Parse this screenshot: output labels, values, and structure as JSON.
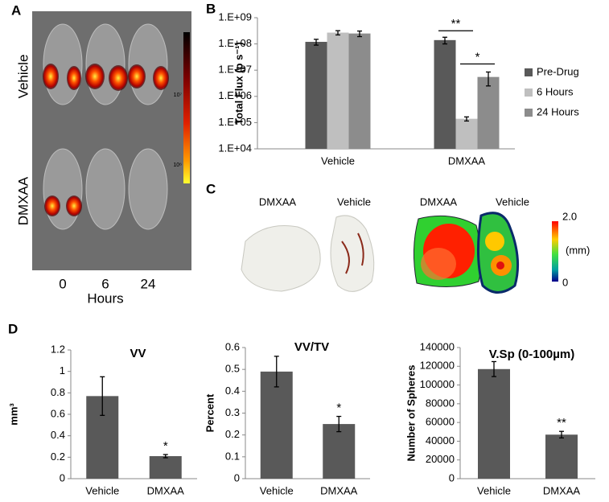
{
  "panels": {
    "a": "A",
    "b": "B",
    "c": "C",
    "d": "D"
  },
  "panel_a": {
    "rows": [
      "Vehicle",
      "DMXAA"
    ],
    "columns": [
      "0",
      "6",
      "24"
    ],
    "x_label": "Hours",
    "colorbar_labels": [
      "10⁷",
      "10⁶"
    ]
  },
  "panel_c": {
    "labels": [
      "DMXAA",
      "Vehicle",
      "DMXAA",
      "Vehicle"
    ],
    "colorbar": {
      "max": "2.0",
      "unit": "(mm)",
      "min": "0"
    }
  },
  "chart_data": [
    {
      "type": "bar",
      "y_label": "Total Flux (p s⁻¹)",
      "log_scale": true,
      "categories": [
        "Vehicle",
        "DMXAA"
      ],
      "series": [
        {
          "name": "Pre-Drug",
          "color": "#595959",
          "values": [
            120000000,
            140000000
          ],
          "errors": [
            30000000,
            40000000
          ]
        },
        {
          "name": "6 Hours",
          "color": "#bfbfbf",
          "values": [
            270000000,
            140000
          ],
          "errors": [
            50000000,
            25000
          ]
        },
        {
          "name": "24 Hours",
          "color": "#8c8c8c",
          "values": [
            250000000,
            5500000
          ],
          "errors": [
            60000000,
            3000000
          ]
        }
      ],
      "ylim": [
        10000,
        1000000000
      ],
      "yticks": [
        {
          "value": 10000,
          "label": "1.E+04"
        },
        {
          "value": 100000,
          "label": "1.E+05"
        },
        {
          "value": 1000000,
          "label": "1.E+06"
        },
        {
          "value": 10000000,
          "label": "1.E+07"
        },
        {
          "value": 100000000,
          "label": "1.E+08"
        },
        {
          "value": 1000000000,
          "label": "1.E+09"
        }
      ],
      "annotations": [
        "**",
        "*"
      ],
      "legend": "right",
      "grid": false
    },
    {
      "type": "bar",
      "title": "VV",
      "y_label": "mm³",
      "categories": [
        "Vehicle",
        "DMXAA"
      ],
      "values": [
        0.77,
        0.21
      ],
      "errors": [
        0.18,
        0.015
      ],
      "color": "#595959",
      "ylim": [
        0,
        1.2
      ],
      "yticks": [
        0,
        0.2,
        0.4,
        0.6,
        0.8,
        1,
        1.2
      ],
      "annotations": [
        "*"
      ],
      "grid": false
    },
    {
      "type": "bar",
      "title": "VV/TV",
      "y_label": "Percent",
      "categories": [
        "Vehicle",
        "DMXAA"
      ],
      "values": [
        0.49,
        0.25
      ],
      "errors": [
        0.07,
        0.035
      ],
      "color": "#595959",
      "ylim": [
        0,
        0.6
      ],
      "yticks": [
        0,
        0.1,
        0.2,
        0.3,
        0.4,
        0.5,
        0.6
      ],
      "annotations": [
        "*"
      ],
      "grid": false
    },
    {
      "type": "bar",
      "title": "V.Sp (0-100µm)",
      "y_label": "Number of Spheres",
      "categories": [
        "Vehicle",
        "DMXAA"
      ],
      "values": [
        117000,
        47000
      ],
      "errors": [
        8000,
        3500
      ],
      "color": "#595959",
      "ylim": [
        0,
        140000
      ],
      "yticks": [
        0,
        20000,
        40000,
        60000,
        80000,
        100000,
        120000,
        140000
      ],
      "annotations": [
        "**"
      ],
      "grid": false
    }
  ]
}
